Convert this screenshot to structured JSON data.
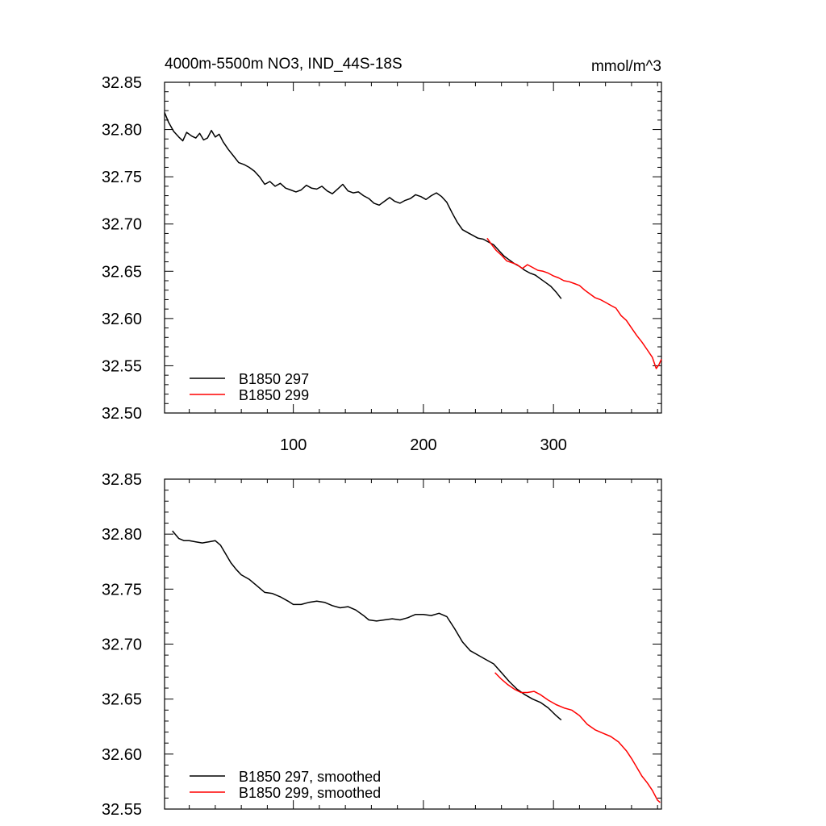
{
  "chart_data": [
    {
      "type": "line",
      "title": "4000m-5500m NO3, IND_44S-18S",
      "units": "mmol/m^3",
      "xlim": [
        1,
        383
      ],
      "ylim": [
        32.5,
        32.85
      ],
      "xticks": [
        100,
        200,
        300
      ],
      "xtick_labels": [
        "100",
        "200",
        "300"
      ],
      "yticks": [
        32.5,
        32.55,
        32.6,
        32.65,
        32.7,
        32.75,
        32.8,
        32.85
      ],
      "ytick_labels": [
        "32.50",
        "32.55",
        "32.60",
        "32.65",
        "32.70",
        "32.75",
        "32.80",
        "32.85"
      ],
      "legend": "bottom-left",
      "grid": false,
      "series": [
        {
          "name": "B1850 297",
          "color": "#000000",
          "points": [
            [
              1,
              32.818
            ],
            [
              4,
              32.808
            ],
            [
              8,
              32.798
            ],
            [
              12,
              32.792
            ],
            [
              15,
              32.788
            ],
            [
              18,
              32.797
            ],
            [
              22,
              32.793
            ],
            [
              25,
              32.791
            ],
            [
              28,
              32.796
            ],
            [
              31,
              32.789
            ],
            [
              34,
              32.791
            ],
            [
              37,
              32.799
            ],
            [
              40,
              32.792
            ],
            [
              43,
              32.795
            ],
            [
              46,
              32.787
            ],
            [
              50,
              32.779
            ],
            [
              54,
              32.772
            ],
            [
              58,
              32.765
            ],
            [
              62,
              32.763
            ],
            [
              66,
              32.76
            ],
            [
              70,
              32.756
            ],
            [
              74,
              32.75
            ],
            [
              78,
              32.742
            ],
            [
              82,
              32.745
            ],
            [
              86,
              32.74
            ],
            [
              90,
              32.743
            ],
            [
              94,
              32.738
            ],
            [
              98,
              32.736
            ],
            [
              102,
              32.734
            ],
            [
              106,
              32.736
            ],
            [
              110,
              32.741
            ],
            [
              114,
              32.738
            ],
            [
              118,
              32.737
            ],
            [
              122,
              32.74
            ],
            [
              126,
              32.735
            ],
            [
              130,
              32.732
            ],
            [
              134,
              32.737
            ],
            [
              138,
              32.742
            ],
            [
              142,
              32.735
            ],
            [
              146,
              32.733
            ],
            [
              150,
              32.734
            ],
            [
              154,
              32.73
            ],
            [
              158,
              32.727
            ],
            [
              162,
              32.722
            ],
            [
              166,
              32.72
            ],
            [
              170,
              32.724
            ],
            [
              174,
              32.728
            ],
            [
              178,
              32.724
            ],
            [
              182,
              32.722
            ],
            [
              186,
              32.725
            ],
            [
              190,
              32.727
            ],
            [
              194,
              32.731
            ],
            [
              198,
              32.729
            ],
            [
              202,
              32.726
            ],
            [
              206,
              32.73
            ],
            [
              210,
              32.733
            ],
            [
              214,
              32.729
            ],
            [
              218,
              32.723
            ],
            [
              222,
              32.712
            ],
            [
              226,
              32.702
            ],
            [
              230,
              32.694
            ],
            [
              234,
              32.691
            ],
            [
              238,
              32.688
            ],
            [
              242,
              32.685
            ],
            [
              246,
              32.684
            ],
            [
              250,
              32.681
            ],
            [
              254,
              32.678
            ],
            [
              258,
              32.672
            ],
            [
              262,
              32.666
            ],
            [
              266,
              32.662
            ],
            [
              270,
              32.658
            ],
            [
              274,
              32.655
            ],
            [
              278,
              32.651
            ],
            [
              282,
              32.648
            ],
            [
              286,
              32.646
            ],
            [
              290,
              32.642
            ],
            [
              294,
              32.638
            ],
            [
              298,
              32.634
            ],
            [
              302,
              32.628
            ],
            [
              306,
              32.621
            ]
          ]
        },
        {
          "name": "B1850 299",
          "color": "#ff0000",
          "points": [
            [
              249,
              32.685
            ],
            [
              252,
              32.679
            ],
            [
              256,
              32.672
            ],
            [
              260,
              32.667
            ],
            [
              264,
              32.661
            ],
            [
              268,
              32.659
            ],
            [
              272,
              32.657
            ],
            [
              276,
              32.653
            ],
            [
              280,
              32.657
            ],
            [
              284,
              32.654
            ],
            [
              288,
              32.651
            ],
            [
              292,
              32.65
            ],
            [
              296,
              32.648
            ],
            [
              300,
              32.645
            ],
            [
              304,
              32.643
            ],
            [
              308,
              32.64
            ],
            [
              312,
              32.639
            ],
            [
              316,
              32.637
            ],
            [
              320,
              32.635
            ],
            [
              324,
              32.63
            ],
            [
              328,
              32.626
            ],
            [
              332,
              32.622
            ],
            [
              336,
              32.62
            ],
            [
              340,
              32.617
            ],
            [
              344,
              32.614
            ],
            [
              348,
              32.611
            ],
            [
              352,
              32.603
            ],
            [
              356,
              32.598
            ],
            [
              360,
              32.59
            ],
            [
              364,
              32.582
            ],
            [
              368,
              32.575
            ],
            [
              372,
              32.567
            ],
            [
              376,
              32.559
            ],
            [
              379,
              32.547
            ],
            [
              381,
              32.551
            ],
            [
              383,
              32.557
            ]
          ]
        }
      ]
    },
    {
      "type": "line",
      "xlim": [
        1,
        383
      ],
      "ylim": [
        32.55,
        32.85
      ],
      "xticks": [
        100,
        200,
        300
      ],
      "yticks": [
        32.55,
        32.6,
        32.65,
        32.7,
        32.75,
        32.8,
        32.85
      ],
      "ytick_labels": [
        "32.55",
        "32.60",
        "32.65",
        "32.70",
        "32.75",
        "32.80",
        "32.85"
      ],
      "legend": "bottom-left",
      "grid": false,
      "series": [
        {
          "name": "B1850 297, smoothed",
          "color": "#000000",
          "points": [
            [
              7,
              32.803
            ],
            [
              12,
              32.796
            ],
            [
              16,
              32.794
            ],
            [
              20,
              32.794
            ],
            [
              25,
              32.793
            ],
            [
              30,
              32.792
            ],
            [
              35,
              32.793
            ],
            [
              40,
              32.794
            ],
            [
              44,
              32.79
            ],
            [
              48,
              32.782
            ],
            [
              52,
              32.774
            ],
            [
              56,
              32.768
            ],
            [
              60,
              32.763
            ],
            [
              66,
              32.759
            ],
            [
              72,
              32.753
            ],
            [
              78,
              32.747
            ],
            [
              84,
              32.746
            ],
            [
              90,
              32.743
            ],
            [
              96,
              32.739
            ],
            [
              100,
              32.736
            ],
            [
              106,
              32.736
            ],
            [
              112,
              32.738
            ],
            [
              118,
              32.739
            ],
            [
              124,
              32.738
            ],
            [
              130,
              32.735
            ],
            [
              136,
              32.733
            ],
            [
              142,
              32.734
            ],
            [
              148,
              32.731
            ],
            [
              154,
              32.726
            ],
            [
              158,
              32.722
            ],
            [
              164,
              32.721
            ],
            [
              170,
              32.722
            ],
            [
              176,
              32.723
            ],
            [
              182,
              32.722
            ],
            [
              188,
              32.724
            ],
            [
              194,
              32.727
            ],
            [
              200,
              32.727
            ],
            [
              206,
              32.726
            ],
            [
              212,
              32.728
            ],
            [
              218,
              32.725
            ],
            [
              224,
              32.714
            ],
            [
              230,
              32.702
            ],
            [
              236,
              32.694
            ],
            [
              242,
              32.69
            ],
            [
              248,
              32.686
            ],
            [
              254,
              32.682
            ],
            [
              260,
              32.674
            ],
            [
              266,
              32.666
            ],
            [
              272,
              32.659
            ],
            [
              278,
              32.654
            ],
            [
              284,
              32.65
            ],
            [
              290,
              32.647
            ],
            [
              296,
              32.642
            ],
            [
              302,
              32.635
            ],
            [
              306,
              32.631
            ]
          ]
        },
        {
          "name": "B1850 299, smoothed",
          "color": "#ff0000",
          "points": [
            [
              255,
              32.674
            ],
            [
              260,
              32.668
            ],
            [
              265,
              32.663
            ],
            [
              270,
              32.659
            ],
            [
              275,
              32.656
            ],
            [
              280,
              32.656
            ],
            [
              285,
              32.657
            ],
            [
              290,
              32.654
            ],
            [
              296,
              32.649
            ],
            [
              302,
              32.645
            ],
            [
              308,
              32.642
            ],
            [
              314,
              32.64
            ],
            [
              320,
              32.635
            ],
            [
              326,
              32.627
            ],
            [
              332,
              32.622
            ],
            [
              338,
              32.619
            ],
            [
              344,
              32.616
            ],
            [
              350,
              32.611
            ],
            [
              356,
              32.603
            ],
            [
              360,
              32.596
            ],
            [
              364,
              32.588
            ],
            [
              368,
              32.58
            ],
            [
              372,
              32.574
            ],
            [
              376,
              32.567
            ],
            [
              380,
              32.558
            ],
            [
              382,
              32.556
            ]
          ]
        }
      ]
    }
  ]
}
